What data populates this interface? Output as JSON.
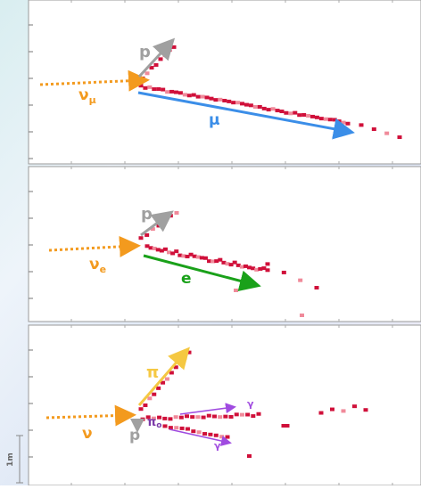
{
  "panels": [
    {
      "neutrino": {
        "symbol": "ν",
        "subscript": "μ"
      },
      "proton": "p",
      "lepton": "μ"
    },
    {
      "neutrino": {
        "symbol": "ν",
        "subscript": "e"
      },
      "proton": "p",
      "lepton": "e"
    },
    {
      "neutrino": {
        "symbol": "ν"
      },
      "pion": "π",
      "pi0": {
        "symbol": "π",
        "subscript": "o"
      },
      "proton": "p",
      "photons": [
        "γ",
        "γ"
      ]
    }
  ],
  "scale": "1m"
}
